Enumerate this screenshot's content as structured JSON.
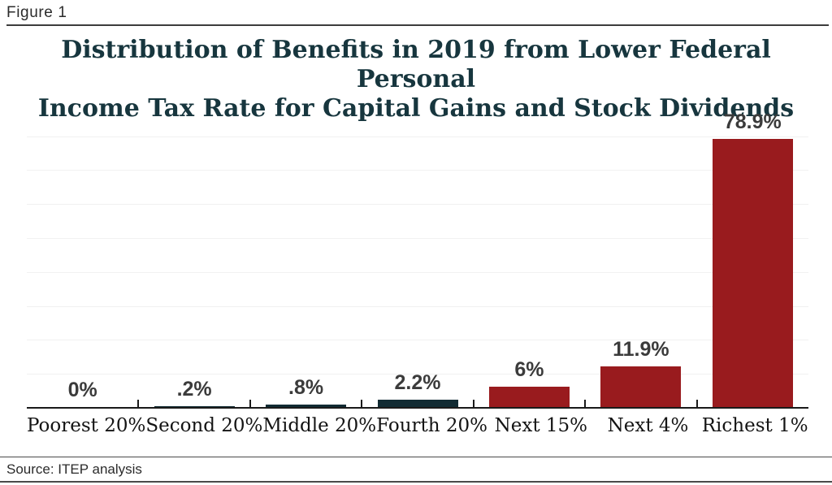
{
  "figure_label": "Figure 1",
  "title_lines": [
    "Distribution of Benefits in 2019 from Lower Federal Personal",
    "Income Tax Rate for Capital Gains and Stock Dividends"
  ],
  "source_text": "Source: ITEP analysis",
  "colors": {
    "title_text": "#17363e",
    "teal_bar": "#112b33",
    "red_bar": "#991b1e",
    "data_label": "#3b3b3b",
    "axis": "#1a1a1a",
    "gridline": "#f1f1f1"
  },
  "chart_data": {
    "type": "bar",
    "title": "Distribution of Benefits in 2019 from Lower Federal Personal Income Tax Rate for Capital Gains and Stock Dividends",
    "categories": [
      "Poorest 20%",
      "Second 20%",
      "Middle 20%",
      "Fourth 20%",
      "Next 15%",
      "Next 4%",
      "Richest 1%"
    ],
    "values": [
      0,
      0.2,
      0.8,
      2.2,
      6,
      11.9,
      78.9
    ],
    "data_labels": [
      "0%",
      ".2%",
      ".8%",
      "2.2%",
      "6%",
      "11.9%",
      "78.9%"
    ],
    "bar_colors": [
      "#112b33",
      "#112b33",
      "#112b33",
      "#112b33",
      "#991b1e",
      "#991b1e",
      "#991b1e"
    ],
    "unit": "%",
    "xlabel": "",
    "ylabel": "",
    "ylim": [
      0,
      86
    ],
    "gridlines": {
      "interval": 10,
      "max": 80,
      "orientation": "horizontal",
      "visible": true
    },
    "y_axis_tick_labels": "none",
    "legend_position": "none",
    "source": "Source: ITEP analysis"
  }
}
